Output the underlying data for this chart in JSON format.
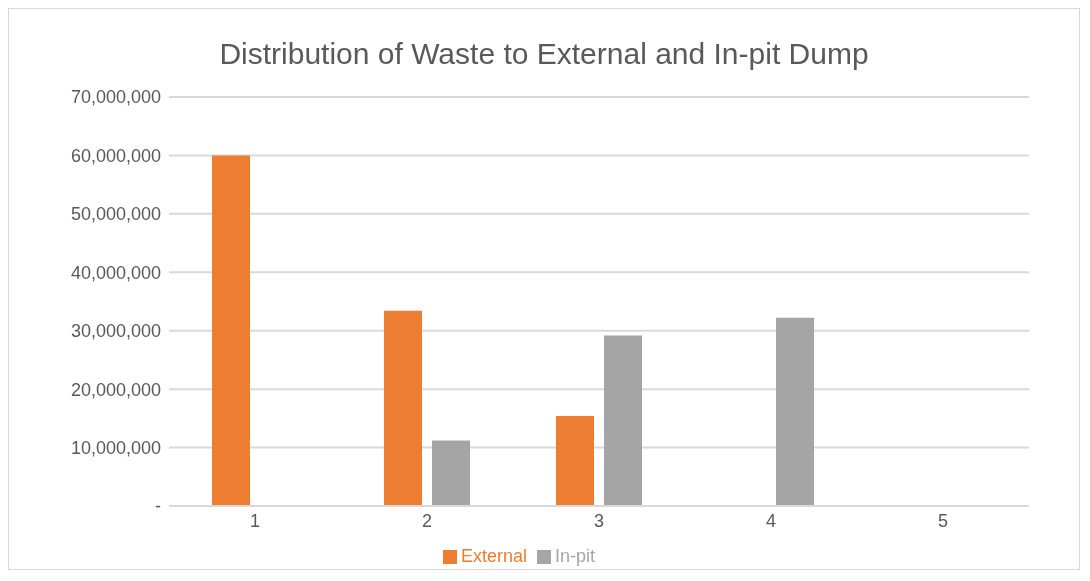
{
  "chart_data": {
    "type": "bar",
    "title": "Distribution of Waste to External and In-pit Dump",
    "categories": [
      "1",
      "2",
      "3",
      "4",
      "5"
    ],
    "series": [
      {
        "name": "External",
        "color": "#ed7d31",
        "values": [
          60000000,
          33400000,
          15400000,
          0,
          0
        ]
      },
      {
        "name": "In-pit",
        "color": "#a5a5a5",
        "values": [
          0,
          11200000,
          29200000,
          32200000,
          0
        ]
      }
    ],
    "ylim": [
      0,
      70000000
    ],
    "yticks": [
      {
        "value": 0,
        "label": "-"
      },
      {
        "value": 10000000,
        "label": "10,000,000"
      },
      {
        "value": 20000000,
        "label": "20,000,000"
      },
      {
        "value": 30000000,
        "label": "30,000,000"
      },
      {
        "value": 40000000,
        "label": "40,000,000"
      },
      {
        "value": 50000000,
        "label": "50,000,000"
      },
      {
        "value": 60000000,
        "label": "60,000,000"
      },
      {
        "value": 70000000,
        "label": "70,000,000"
      }
    ],
    "grid": "y",
    "legend": "bottom"
  }
}
